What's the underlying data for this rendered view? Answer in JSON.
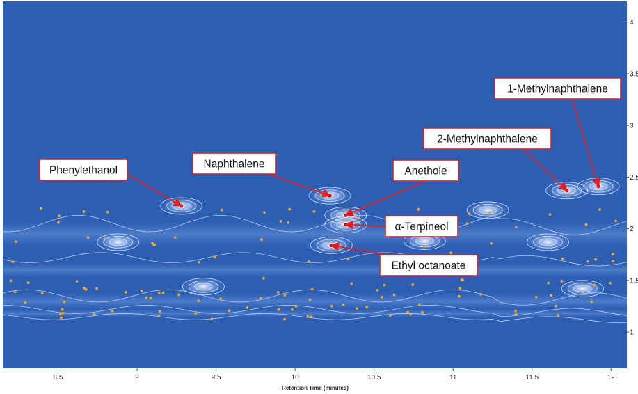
{
  "chart_data": {
    "type": "heatmap",
    "xlabel": "Retention Time (minutes)",
    "ylabel": "",
    "xlim": [
      8.15,
      12.1
    ],
    "ylim": [
      0.65,
      4.2
    ],
    "x_ticks": [
      "8.5",
      "9",
      "9.5",
      "10",
      "10.5",
      "11",
      "11.5",
      "12"
    ],
    "y_ticks": [
      "1",
      "1.5",
      "2",
      "2.5",
      "3",
      "3.5",
      "4"
    ],
    "colors": {
      "background": "#2c5fb3",
      "contour": "#dfe9ff",
      "point": "#f5a623",
      "arrow": "#e02020",
      "box_border": "#c62828"
    },
    "peaks": [
      {
        "x": 9.28,
        "y": 2.22
      },
      {
        "x": 10.22,
        "y": 2.32
      },
      {
        "x": 10.32,
        "y": 2.13
      },
      {
        "x": 10.32,
        "y": 2.04
      },
      {
        "x": 10.23,
        "y": 1.84
      },
      {
        "x": 11.72,
        "y": 2.37
      },
      {
        "x": 11.92,
        "y": 2.41
      },
      {
        "x": 8.88,
        "y": 1.87
      },
      {
        "x": 9.42,
        "y": 1.44
      },
      {
        "x": 11.22,
        "y": 2.18
      },
      {
        "x": 11.6,
        "y": 1.87
      },
      {
        "x": 10.82,
        "y": 1.88
      },
      {
        "x": 11.82,
        "y": 1.42
      }
    ],
    "annotations": [
      {
        "label": "Phenylethanol",
        "x": 9.28,
        "y": 2.22
      },
      {
        "label": "Naphthalene",
        "x": 10.22,
        "y": 2.32
      },
      {
        "label": "Anethole",
        "x": 10.32,
        "y": 2.13
      },
      {
        "label": "α-Terpineol",
        "x": 10.32,
        "y": 2.04
      },
      {
        "label": "Ethyl octanoate",
        "x": 10.23,
        "y": 1.84
      },
      {
        "label": "2-Methylnaphthalene",
        "x": 11.72,
        "y": 2.37
      },
      {
        "label": "1-Methylnaphthalene",
        "x": 11.92,
        "y": 2.41
      }
    ]
  }
}
